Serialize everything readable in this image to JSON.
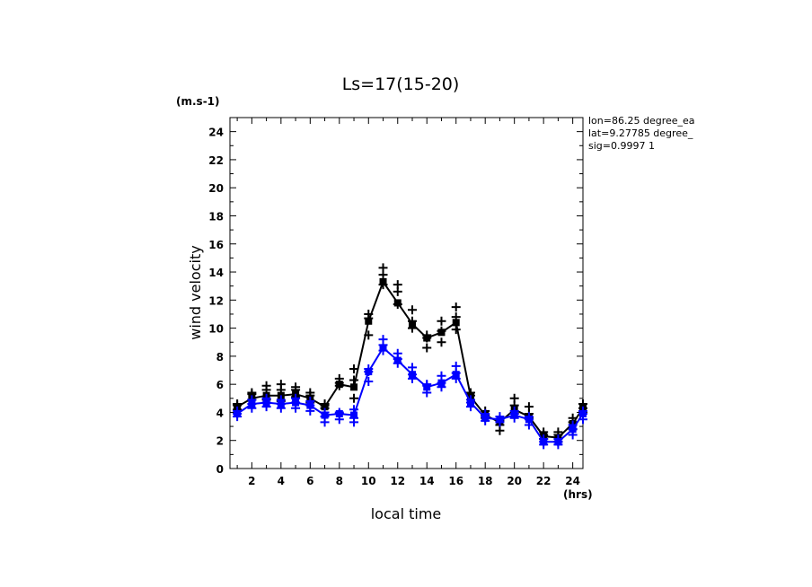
{
  "chart_data": {
    "type": "line",
    "title": "Ls=17(15-20)",
    "xlabel": "local time",
    "ylabel": "wind velocity",
    "x_unit": "(hrs)",
    "y_unit": "(m.s-1)",
    "xlim": [
      0.5,
      24.7
    ],
    "ylim": [
      0,
      25
    ],
    "xticks": [
      2,
      4,
      6,
      8,
      10,
      12,
      14,
      16,
      18,
      20,
      22,
      24
    ],
    "yticks": [
      0,
      2,
      4,
      6,
      8,
      10,
      12,
      14,
      16,
      18,
      20,
      22,
      24
    ],
    "grid": false,
    "annotations": [
      "lon=86.25 degree_ea",
      "lat=9.27785 degree_",
      "sig=0.9997 1"
    ],
    "x": [
      1,
      2,
      3,
      4,
      5,
      6,
      7,
      8,
      9,
      10,
      11,
      12,
      13,
      14,
      15,
      16,
      17,
      18,
      19,
      20,
      21,
      22,
      23,
      24,
      24.7
    ],
    "series": [
      {
        "color": "#000000",
        "values": [
          4.4,
          5.0,
          5.2,
          5.2,
          5.3,
          5.0,
          4.4,
          6.0,
          5.8,
          10.5,
          13.3,
          11.8,
          10.3,
          9.3,
          9.7,
          10.4,
          5.1,
          3.8,
          3.3,
          4.2,
          3.7,
          2.3,
          2.2,
          3.2,
          4.3
        ],
        "markers": [
          [
            4.2,
            4.5,
            4.6
          ],
          [
            4.9,
            5.3,
            5.4
          ],
          [
            4.9,
            5.6,
            5.9
          ],
          [
            4.8,
            5.6,
            6.0
          ],
          [
            5.1,
            5.6,
            5.8
          ],
          [
            4.7,
            5.2,
            5.4
          ],
          [
            4.3,
            4.5,
            4.6
          ],
          [
            5.9,
            6.1,
            6.4
          ],
          [
            5.0,
            6.3,
            7.1
          ],
          [
            9.5,
            10.7,
            11.0
          ],
          [
            13.1,
            13.8,
            14.3
          ],
          [
            11.7,
            12.6,
            13.1
          ],
          [
            10.0,
            10.5,
            11.3
          ],
          [
            8.6,
            9.3,
            9.5
          ],
          [
            9.0,
            9.8,
            10.5
          ],
          [
            9.9,
            10.8,
            11.5
          ],
          [
            4.7,
            5.2,
            5.4
          ],
          [
            3.6,
            3.8,
            4.1
          ],
          [
            2.7,
            3.1,
            3.4
          ],
          [
            3.9,
            4.5,
            5.0
          ],
          [
            3.6,
            3.9,
            4.4
          ],
          [
            2.1,
            2.4,
            2.6
          ],
          [
            1.9,
            2.4,
            2.6
          ],
          [
            2.8,
            3.3,
            3.6
          ],
          [
            4.0,
            4.3,
            4.6
          ]
        ]
      },
      {
        "color": "#0000ff",
        "values": [
          3.9,
          4.6,
          4.7,
          4.6,
          4.7,
          4.5,
          3.8,
          3.9,
          3.8,
          6.9,
          8.6,
          7.7,
          6.7,
          5.8,
          6.1,
          6.7,
          4.7,
          3.6,
          3.5,
          3.8,
          3.5,
          1.9,
          1.9,
          2.8,
          3.9
        ],
        "markers": [
          [
            3.7,
            3.9,
            4.1
          ],
          [
            4.3,
            4.6,
            4.9
          ],
          [
            4.4,
            4.7,
            5.0
          ],
          [
            4.3,
            4.6,
            4.9
          ],
          [
            4.3,
            4.7,
            5.0
          ],
          [
            4.1,
            4.5,
            4.8
          ],
          [
            3.3,
            3.7,
            4.0
          ],
          [
            3.5,
            3.9,
            4.0
          ],
          [
            3.3,
            3.6,
            4.2
          ],
          [
            6.2,
            6.9,
            7.1
          ],
          [
            8.4,
            8.8,
            9.2
          ],
          [
            7.5,
            7.8,
            8.2
          ],
          [
            6.4,
            6.7,
            7.2
          ],
          [
            5.4,
            5.9,
            6.0
          ],
          [
            5.8,
            6.1,
            6.6
          ],
          [
            6.4,
            6.8,
            7.3
          ],
          [
            4.4,
            4.7,
            4.9
          ],
          [
            3.4,
            3.7,
            3.9
          ],
          [
            3.3,
            3.5,
            3.7
          ],
          [
            3.6,
            3.9,
            4.1
          ],
          [
            3.1,
            3.5,
            3.7
          ],
          [
            1.7,
            1.9,
            2.1
          ],
          [
            1.7,
            1.9,
            2.1
          ],
          [
            2.4,
            2.8,
            3.1
          ],
          [
            3.5,
            3.9,
            4.1
          ]
        ]
      }
    ]
  }
}
